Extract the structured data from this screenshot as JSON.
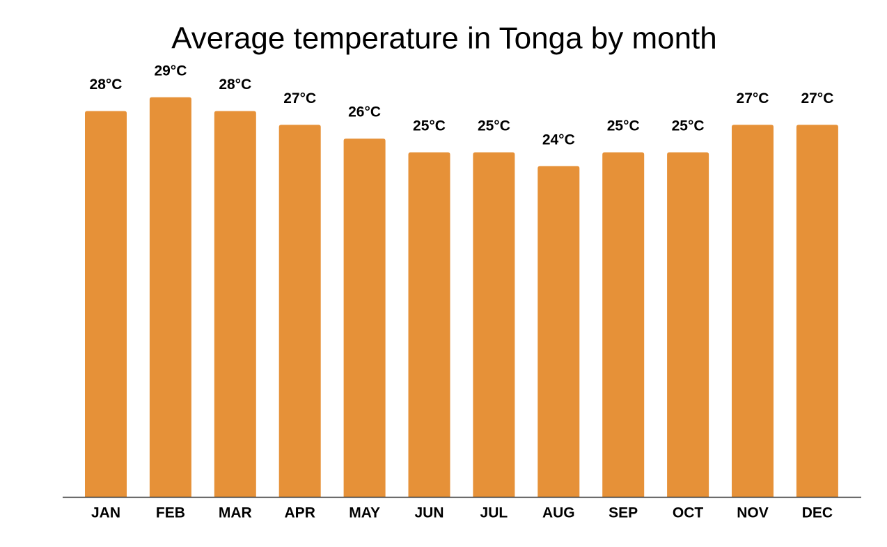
{
  "chart_data": {
    "type": "bar",
    "title": "Average temperature in Tonga by month",
    "categories": [
      "JAN",
      "FEB",
      "MAR",
      "APR",
      "MAY",
      "JUN",
      "JUL",
      "AUG",
      "SEP",
      "OCT",
      "NOV",
      "DEC"
    ],
    "values": [
      28,
      29,
      28,
      27,
      26,
      25,
      25,
      24,
      25,
      25,
      27,
      27
    ],
    "value_labels": [
      "28°C",
      "29°C",
      "28°C",
      "27°C",
      "26°C",
      "25°C",
      "25°C",
      "24°C",
      "25°C",
      "25°C",
      "27°C",
      "27°C"
    ],
    "color": "#e69138"
  }
}
